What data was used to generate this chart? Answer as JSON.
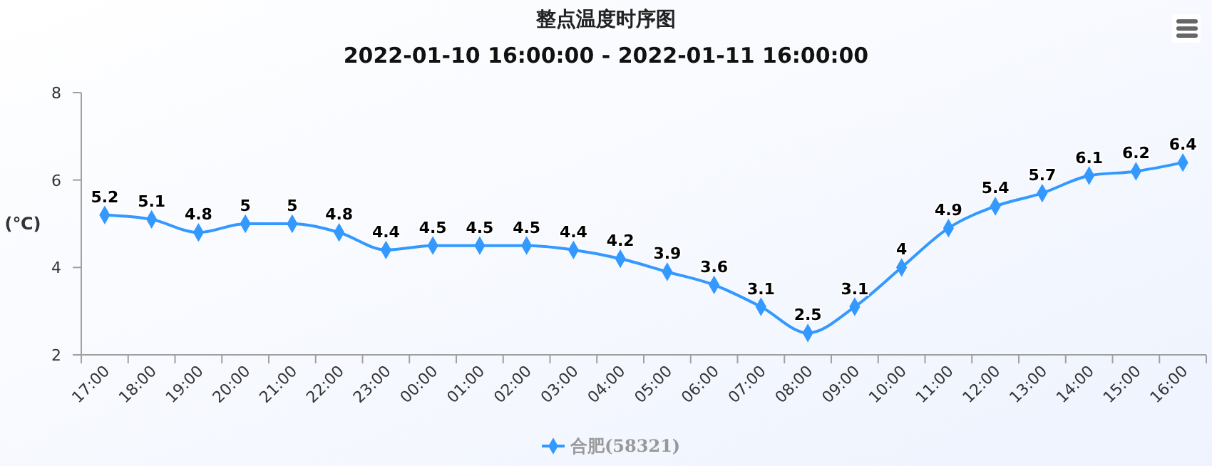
{
  "chart_data": {
    "type": "line",
    "title": "整点温度时序图",
    "subtitle": "2022-01-10 16:00:00 - 2022-01-11 16:00:00",
    "ylabel": "(℃)",
    "categories": [
      "17:00",
      "18:00",
      "19:00",
      "20:00",
      "21:00",
      "22:00",
      "23:00",
      "00:00",
      "01:00",
      "02:00",
      "03:00",
      "04:00",
      "05:00",
      "06:00",
      "07:00",
      "08:00",
      "09:00",
      "10:00",
      "11:00",
      "12:00",
      "13:00",
      "14:00",
      "15:00",
      "16:00"
    ],
    "series": [
      {
        "name": "合肥(58321)",
        "color": "#3399ff",
        "values": [
          5.2,
          5.1,
          4.8,
          5,
          5,
          4.8,
          4.4,
          4.5,
          4.5,
          4.5,
          4.4,
          4.2,
          3.9,
          3.6,
          3.1,
          2.5,
          3.1,
          4,
          4.9,
          5.4,
          5.7,
          6.1,
          6.2,
          6.4
        ]
      }
    ],
    "ylim": [
      2,
      8
    ],
    "yticks": [
      2,
      4,
      6,
      8
    ],
    "grid": false,
    "legend": "bottom",
    "marker": "diamond",
    "line_style": "solid",
    "data_labels": true
  }
}
